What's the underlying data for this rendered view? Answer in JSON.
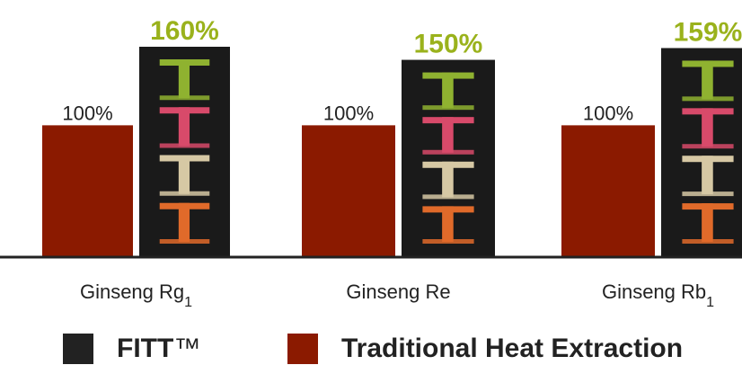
{
  "chart_data": {
    "type": "bar",
    "categories": [
      "Ginseng Rg",
      "Ginseng Re",
      "Ginseng Rb"
    ],
    "category_subscripts": [
      "1",
      "",
      "1"
    ],
    "series": [
      {
        "name": "Traditional Heat Extraction",
        "values": [
          100,
          100,
          100
        ],
        "labels": [
          "100%",
          "100%",
          "100%"
        ],
        "color": "#8b1a00"
      },
      {
        "name": "FITT",
        "values": [
          160,
          150,
          159
        ],
        "labels": [
          "160%",
          "150%",
          "159%"
        ],
        "color": "#1a1a1a"
      }
    ],
    "value_label_colors": {
      "FITT": "#9ab21c",
      "Traditional Heat Extraction": "#222222"
    },
    "ylim": [
      0,
      170
    ],
    "grid": false,
    "legend_placement": "bottom"
  },
  "legend": {
    "fitt_label": "FITT",
    "fitt_mark": "™",
    "traditional_label": "Traditional Heat Extraction"
  }
}
